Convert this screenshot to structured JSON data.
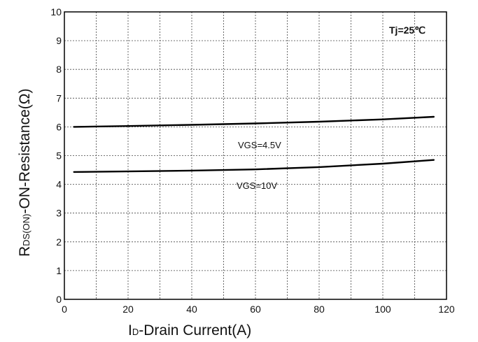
{
  "chart_data": {
    "type": "line",
    "title": "",
    "xlabel": {
      "main": "I",
      "sub": "D",
      "rest": "-Drain Current(A)"
    },
    "ylabel": {
      "main": "R",
      "sub": "DS(ON)",
      "rest": "-ON-Resistance(Ω)"
    },
    "xlim": [
      0,
      120
    ],
    "ylim": [
      0,
      10
    ],
    "xticks": [
      0,
      20,
      40,
      60,
      80,
      100,
      120
    ],
    "yticks": [
      0,
      1,
      2,
      3,
      4,
      5,
      6,
      7,
      8,
      9,
      10
    ],
    "grid": true,
    "series": [
      {
        "name": "VGS=4.5V",
        "x": [
          3,
          20,
          40,
          60,
          80,
          100,
          116
        ],
        "y": [
          6.0,
          6.03,
          6.07,
          6.12,
          6.18,
          6.26,
          6.35
        ]
      },
      {
        "name": "VGS=10V",
        "x": [
          3,
          20,
          40,
          60,
          80,
          100,
          116
        ],
        "y": [
          4.43,
          4.45,
          4.48,
          4.52,
          4.6,
          4.72,
          4.85
        ]
      }
    ],
    "annotations": [
      "Tj=25℃"
    ]
  }
}
